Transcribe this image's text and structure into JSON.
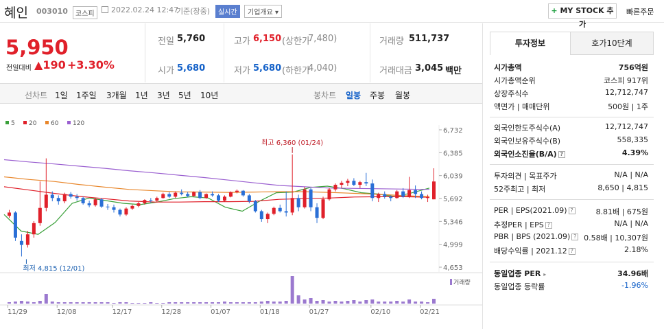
{
  "header": {
    "name": "혜인",
    "code": "003010",
    "market": "코스피",
    "datetime": "2022.02.24 12:47",
    "basis": "기준(장중)",
    "realtime": "실시간",
    "company_info": "기업개요",
    "my_stock": "MY STOCK 추가",
    "quick_order": "빠른주문"
  },
  "price": {
    "current": "5,950",
    "change_label": "전일대비",
    "change": "190",
    "change_pct": "+3.30%"
  },
  "stats": {
    "prev_label": "전일",
    "prev": "5,760",
    "high_label": "고가",
    "high": "6,150",
    "upper_label": "(상한가",
    "upper": "7,480)",
    "volume_label": "거래량",
    "volume": "511,737",
    "open_label": "시가",
    "open": "5,680",
    "low_label": "저가",
    "low": "5,680",
    "lower_label": "(하한가",
    "lower": "4,040)",
    "amount_label": "거래대금",
    "amount": "3,045",
    "amount_unit": "백만"
  },
  "chart_tabs": {
    "line_label": "선차트",
    "line": [
      "1일",
      "1주일",
      "3개월",
      "1년",
      "3년",
      "5년",
      "10년"
    ],
    "candle_label": "봉차트",
    "candle": [
      "일봉",
      "주봉",
      "월봉"
    ]
  },
  "legend": [
    {
      "label": "5",
      "color": "#3aa03a"
    },
    {
      "label": "20",
      "color": "#e0202a"
    },
    {
      "label": "60",
      "color": "#e8862a"
    },
    {
      "label": "120",
      "color": "#9a5fd0"
    }
  ],
  "annotations": {
    "high": "최고 6,360 (01/24)",
    "low": "최저 4,815 (12/01)",
    "volume": "거래량"
  },
  "chart_data": {
    "type": "candlestick",
    "y_ticks": [
      "6,732",
      "6,385",
      "6,039",
      "5,692",
      "5,346",
      "4,999",
      "4,653"
    ],
    "ylim": [
      4653,
      6732
    ],
    "x_ticks": [
      "11/29",
      "12/08",
      "12/17",
      "12/28",
      "01/07",
      "01/18",
      "01/27",
      "02/10",
      "02/21"
    ],
    "candles": [
      [
        5430,
        5520,
        5400,
        5480
      ],
      [
        5480,
        5500,
        5050,
        5100
      ],
      [
        5050,
        5150,
        4815,
        4990
      ],
      [
        4990,
        5200,
        4950,
        5150
      ],
      [
        5150,
        5350,
        5100,
        5320
      ],
      [
        5320,
        5950,
        5280,
        5550
      ],
      [
        5550,
        6300,
        5500,
        5750
      ],
      [
        5750,
        5800,
        5650,
        5700
      ],
      [
        5700,
        5740,
        5600,
        5650
      ],
      [
        5650,
        5780,
        5620,
        5760
      ],
      [
        5760,
        5790,
        5690,
        5720
      ],
      [
        5720,
        5760,
        5660,
        5700
      ],
      [
        5700,
        5720,
        5600,
        5620
      ],
      [
        5620,
        5660,
        5560,
        5590
      ],
      [
        5590,
        5700,
        5570,
        5680
      ],
      [
        5680,
        5700,
        5550,
        5570
      ],
      [
        5570,
        5610,
        5520,
        5560
      ],
      [
        5560,
        5600,
        5480,
        5520
      ],
      [
        5520,
        5540,
        5420,
        5450
      ],
      [
        5450,
        5560,
        5430,
        5540
      ],
      [
        5540,
        5600,
        5520,
        5580
      ],
      [
        5580,
        5640,
        5560,
        5620
      ],
      [
        5620,
        5680,
        5600,
        5670
      ],
      [
        5670,
        5700,
        5630,
        5660
      ],
      [
        5660,
        5720,
        5640,
        5700
      ],
      [
        5700,
        5780,
        5690,
        5760
      ],
      [
        5760,
        5790,
        5700,
        5720
      ],
      [
        5720,
        5800,
        5700,
        5780
      ],
      [
        5780,
        5830,
        5740,
        5760
      ],
      [
        5760,
        5790,
        5710,
        5730
      ],
      [
        5730,
        5800,
        5720,
        5790
      ],
      [
        5790,
        5820,
        5680,
        5700
      ],
      [
        5700,
        5770,
        5690,
        5760
      ],
      [
        5760,
        5800,
        5720,
        5740
      ],
      [
        5740,
        5760,
        5640,
        5660
      ],
      [
        5660,
        5740,
        5640,
        5720
      ],
      [
        5720,
        5800,
        5710,
        5790
      ],
      [
        5790,
        5830,
        5770,
        5810
      ],
      [
        5810,
        5820,
        5720,
        5740
      ],
      [
        5740,
        5760,
        5620,
        5650
      ],
      [
        5650,
        5670,
        5480,
        5500
      ],
      [
        5500,
        5520,
        5340,
        5380
      ],
      [
        5380,
        5480,
        5320,
        5460
      ],
      [
        5460,
        5570,
        5440,
        5550
      ],
      [
        5550,
        5600,
        5480,
        5500
      ],
      [
        5500,
        5800,
        5420,
        5480
      ],
      [
        5480,
        6360,
        5440,
        5700
      ],
      [
        5700,
        5750,
        5500,
        5560
      ],
      [
        5560,
        5870,
        5540,
        5830
      ],
      [
        5830,
        5850,
        5500,
        5560
      ],
      [
        5560,
        5620,
        5320,
        5400
      ],
      [
        5400,
        5720,
        5380,
        5680
      ],
      [
        5680,
        5850,
        5660,
        5830
      ],
      [
        5830,
        5920,
        5800,
        5900
      ],
      [
        5900,
        5960,
        5850,
        5930
      ],
      [
        5930,
        5990,
        5880,
        5960
      ],
      [
        5960,
        6000,
        5880,
        5900
      ],
      [
        5900,
        5960,
        5850,
        5940
      ],
      [
        5940,
        6080,
        5880,
        5920
      ],
      [
        5920,
        5980,
        5650,
        5700
      ],
      [
        5700,
        5780,
        5640,
        5760
      ],
      [
        5760,
        5800,
        5690,
        5720
      ],
      [
        5720,
        5740,
        5650,
        5700
      ],
      [
        5700,
        5820,
        5690,
        5800
      ],
      [
        5800,
        5850,
        5700,
        5720
      ],
      [
        5720,
        6020,
        5700,
        5820
      ],
      [
        5820,
        5890,
        5700,
        5760
      ],
      [
        5760,
        5800,
        5680,
        5700
      ],
      [
        5700,
        5750,
        5640,
        5710
      ],
      [
        5680,
        6150,
        5680,
        5950
      ]
    ],
    "ma": {
      "120": [
        6280,
        6245,
        6215,
        6182,
        6150,
        6112,
        6080,
        6045,
        6010,
        5970,
        5930,
        5890,
        5870,
        5850,
        5845,
        5840,
        5835,
        5830
      ],
      "60": [
        6020,
        5980,
        5950,
        5905,
        5865,
        5830,
        5810,
        5792,
        5790,
        5785,
        5790,
        5795,
        5795,
        5785,
        5770,
        5755,
        5735,
        5720
      ],
      "20": [
        5870,
        5820,
        5770,
        5725,
        5690,
        5655,
        5640,
        5638,
        5645,
        5645,
        5650,
        5680,
        5690,
        5700,
        5715,
        5720,
        5720,
        5712
      ],
      "5": [
        5450,
        5200,
        5150,
        5330,
        5620,
        5700,
        5660,
        5620,
        5600,
        5640,
        5690,
        5720,
        5700,
        5560,
        5500,
        5650,
        5780,
        5790,
        5860,
        5880,
        5840,
        5780,
        5760,
        5720,
        5780,
        5850
      ]
    },
    "volume": [
      2,
      3,
      4,
      3,
      2,
      4,
      14,
      3,
      2,
      2,
      2,
      2,
      2,
      2,
      2,
      2,
      2,
      1,
      2,
      2,
      1,
      1,
      1,
      2,
      1,
      1,
      2,
      2,
      2,
      2,
      2,
      2,
      2,
      2,
      2,
      3,
      2,
      2,
      2,
      2,
      2,
      3,
      4,
      3,
      3,
      4,
      40,
      12,
      6,
      8,
      4,
      5,
      3,
      4,
      3,
      4,
      5,
      3,
      5,
      6,
      3,
      3,
      3,
      4,
      3,
      6,
      3,
      3,
      2,
      7
    ]
  },
  "side": {
    "tab1": "투자정보",
    "tab2": "호가10단계",
    "s1": [
      {
        "label": "시가총액",
        "value": "756억원",
        "bold": true
      },
      {
        "label": "시가총액순위",
        "value": "코스피 917위"
      },
      {
        "label": "상장주식수",
        "value": "12,712,747"
      },
      {
        "label": "액면가 | 매매단위",
        "value": "500원 | 1주"
      }
    ],
    "s2": [
      {
        "label": "외국인한도주식수(A)",
        "value": "12,712,747"
      },
      {
        "label": "외국인보유주식수(B)",
        "value": "558,335"
      },
      {
        "label": "외국인소진율(B/A)",
        "value": "4.39%",
        "bold": true
      }
    ],
    "s3": [
      {
        "label": "투자의견 | 목표주가",
        "value": "N/A | N/A"
      },
      {
        "label": "52주최고 | 최저",
        "value": "8,650 | 4,815"
      }
    ],
    "s4": [
      {
        "label": "PER | EPS(2021.09)",
        "value": "8.81배 | 675원"
      },
      {
        "label": "추정PER | EPS",
        "value": "N/A | N/A"
      },
      {
        "label": "PBR | BPS (2021.09)",
        "value": "0.58배 | 10,307원"
      },
      {
        "label": "배당수익률 | 2021.12",
        "value": "2.18%"
      }
    ],
    "s5": [
      {
        "label": "동일업종 PER",
        "value": "34.96배",
        "bold": true
      },
      {
        "label": "동일업종 등락률",
        "value": "-1.96%",
        "blue": true
      }
    ]
  }
}
